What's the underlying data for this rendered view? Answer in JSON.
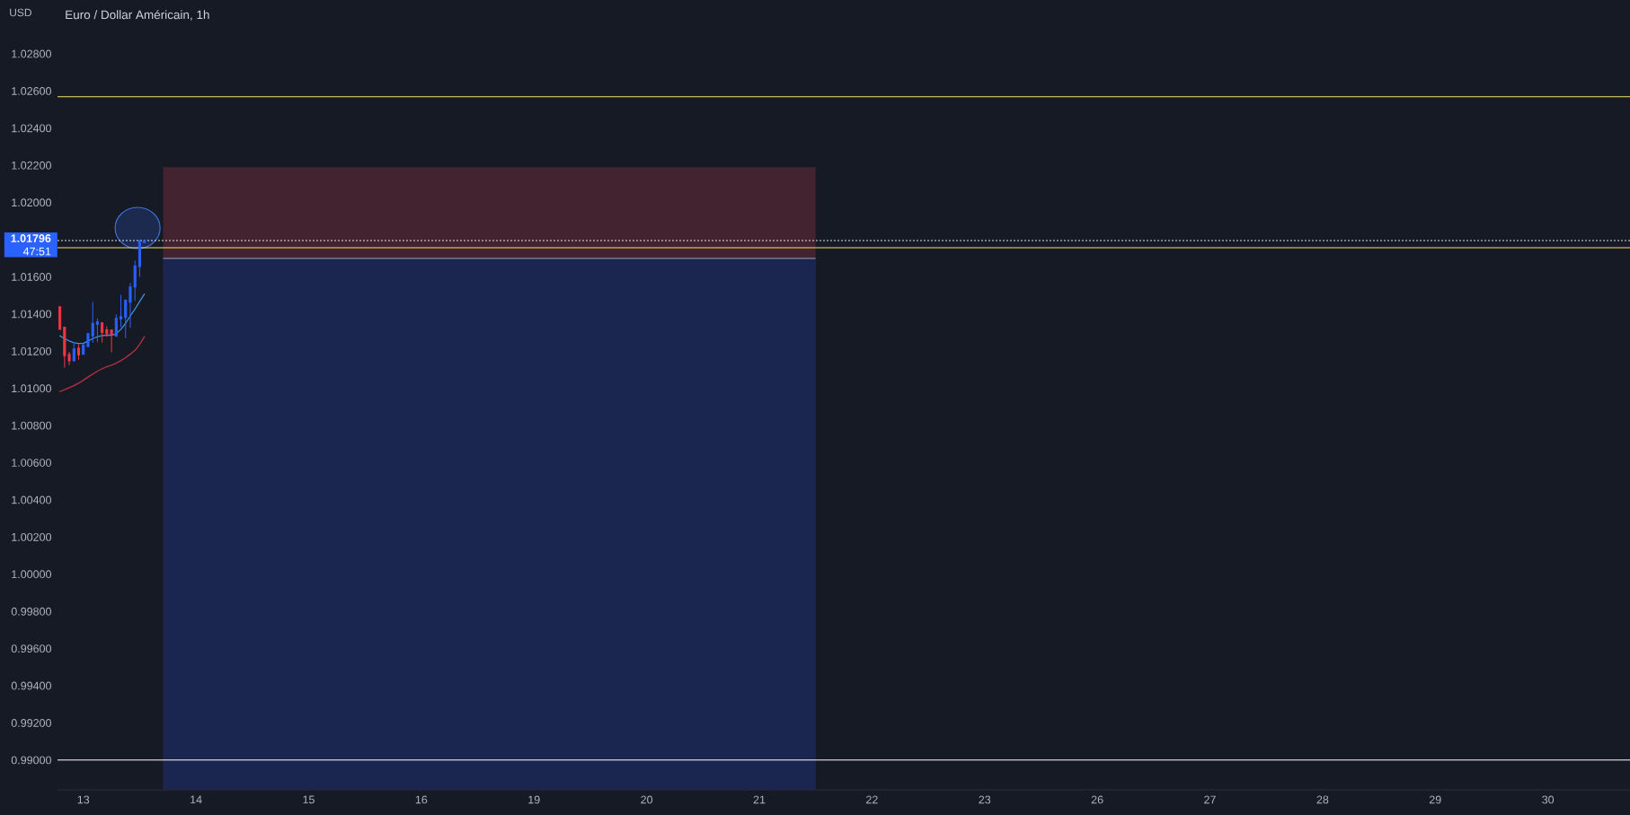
{
  "chart_data": {
    "type": "candlestick",
    "title": "Euro / Dollar Américain, 1h",
    "ylabel": "USD",
    "categories": [
      null,
      null,
      null,
      null,
      null,
      "13",
      null,
      null,
      null,
      null,
      null,
      null,
      null,
      null,
      null,
      null,
      null,
      null,
      null,
      null,
      null,
      null,
      null,
      null,
      null,
      null,
      null,
      null,
      null,
      "14",
      null,
      null,
      null,
      null,
      null,
      null,
      null,
      null,
      null,
      null,
      null,
      null,
      null,
      null,
      null,
      null,
      null,
      null,
      null,
      null,
      null,
      null,
      null,
      "15",
      null,
      null,
      null,
      null,
      null,
      null,
      null,
      null,
      null,
      null,
      null,
      null,
      null,
      null,
      null,
      null,
      null,
      null,
      null,
      null,
      null,
      null,
      null,
      "16",
      null,
      null,
      null,
      null,
      null,
      null,
      null,
      null,
      null,
      null,
      null,
      null,
      null,
      null,
      null,
      null,
      null,
      null,
      null,
      null,
      null,
      null,
      null,
      "19",
      null,
      null,
      null,
      null,
      null,
      null,
      null,
      null,
      null,
      null,
      null,
      null,
      null,
      null,
      null,
      null,
      null,
      null,
      null,
      null,
      null,
      null,
      null,
      "20",
      null,
      null,
      null,
      null,
      null,
      null,
      null,
      null,
      null,
      null,
      null,
      null,
      null,
      null,
      null,
      null,
      null,
      null,
      null,
      null,
      null,
      null,
      null,
      "21",
      null,
      null,
      null,
      null,
      null,
      null,
      null,
      null,
      null,
      null,
      null,
      null,
      null,
      null,
      null,
      null,
      null,
      null,
      null,
      null,
      null,
      null,
      null,
      "22",
      null,
      null,
      null,
      null,
      null,
      null,
      null,
      null,
      null,
      null,
      null,
      null,
      null,
      null,
      null,
      null,
      null,
      null,
      null,
      null,
      null,
      null,
      null,
      "23",
      null,
      null,
      null,
      null,
      null,
      null,
      null,
      null,
      null,
      null,
      null,
      null,
      null,
      null,
      null,
      null,
      null,
      null,
      null,
      null,
      null,
      null,
      null,
      "26",
      null,
      null,
      null,
      null,
      null,
      null,
      null,
      null,
      null,
      null,
      null,
      null,
      null,
      null,
      null,
      null,
      null,
      null,
      null,
      null,
      null,
      null,
      null,
      "27",
      null,
      null,
      null,
      null,
      null,
      null,
      null,
      null,
      null,
      null,
      null,
      null,
      null,
      null,
      null,
      null,
      null,
      null,
      null,
      null,
      null,
      null,
      null,
      "28",
      null,
      null,
      null,
      null,
      null,
      null,
      null,
      null,
      null,
      null,
      null,
      null,
      null,
      null,
      null,
      null,
      null,
      null,
      null,
      null,
      null,
      null,
      null,
      "29",
      null,
      null,
      null,
      null,
      null,
      null,
      null,
      null,
      null,
      null,
      null,
      null,
      null,
      null,
      null,
      null,
      null,
      null,
      null,
      null,
      null,
      null,
      null,
      "30",
      null,
      null,
      null,
      null,
      null,
      null,
      null,
      null,
      null,
      null,
      null,
      null,
      null,
      null,
      null,
      null,
      null
    ],
    "ohlc": [
      [
        1.01439,
        1.01442,
        1.01315,
        1.01318
      ],
      [
        1.01329,
        1.01331,
        1.01112,
        1.01176
      ],
      [
        1.01183,
        1.01197,
        1.01125,
        1.01149
      ],
      [
        1.01149,
        1.01241,
        1.01144,
        1.01213
      ],
      [
        1.01217,
        1.01238,
        1.01154,
        1.01181
      ],
      [
        1.01184,
        1.01238,
        1.01181,
        1.01234
      ],
      [
        1.01226,
        1.01299,
        1.01221,
        1.01294
      ],
      [
        1.01283,
        1.01466,
        1.01246,
        1.0135
      ],
      [
        1.01345,
        1.01377,
        1.01249,
        1.01358
      ],
      [
        1.01353,
        1.01357,
        1.01246,
        1.01302
      ],
      [
        1.01315,
        1.01334,
        1.01278,
        1.01294
      ],
      [
        1.01315,
        1.01318,
        1.01194,
        1.01289
      ],
      [
        1.01283,
        1.01398,
        1.01278,
        1.01377
      ],
      [
        1.01374,
        1.01503,
        1.01331,
        1.01386
      ],
      [
        1.01382,
        1.01479,
        1.0127,
        1.01474
      ],
      [
        1.01463,
        1.01567,
        1.01326,
        1.01546
      ],
      [
        1.01546,
        1.01688,
        1.01471,
        1.01659
      ],
      [
        1.01656,
        1.01801,
        1.016,
        1.01793
      ],
      [
        1.01785,
        1.01798,
        1.01785,
        1.01796
      ],
      null,
      null,
      null,
      null,
      null,
      null,
      null,
      null,
      null,
      null,
      null,
      null,
      null,
      null,
      null,
      null,
      null,
      null,
      null,
      null,
      null,
      null,
      null,
      null,
      null,
      null,
      null,
      null,
      null,
      null,
      null,
      null,
      null,
      null,
      null,
      null,
      null,
      null,
      null,
      null,
      null,
      null,
      null,
      null,
      null,
      null,
      null,
      null,
      null,
      null,
      null,
      null,
      null,
      null,
      null,
      null,
      null,
      null,
      null,
      null,
      null,
      null,
      null,
      null,
      null,
      null,
      null,
      null,
      null,
      null,
      null,
      null,
      null,
      null,
      null,
      null,
      null,
      null,
      null,
      null,
      null,
      null,
      null,
      null,
      null,
      null,
      null,
      null,
      null,
      null,
      null,
      null,
      null,
      null,
      null,
      null,
      null,
      null,
      null,
      null,
      null,
      null,
      null,
      null,
      null,
      null,
      null,
      null,
      null,
      null,
      null,
      null,
      null,
      null,
      null,
      null,
      null,
      null,
      null,
      null,
      null,
      null,
      null,
      null,
      null,
      null,
      null,
      null,
      null,
      null,
      null,
      null,
      null,
      null,
      null,
      null,
      null,
      null,
      null,
      null,
      null,
      null,
      null,
      null,
      null,
      null,
      null,
      null,
      null,
      null,
      null,
      null,
      null,
      null,
      null,
      null,
      null,
      null,
      null,
      null,
      null,
      null,
      null,
      null,
      null,
      null,
      null,
      null,
      null,
      null,
      null,
      null,
      null,
      null,
      null,
      null,
      null,
      null,
      null,
      null,
      null,
      null,
      null,
      null,
      null,
      null,
      null,
      null,
      null,
      null,
      null,
      null,
      null,
      null,
      null,
      null,
      null,
      null,
      null,
      null,
      null,
      null,
      null,
      null,
      null,
      null,
      null,
      null,
      null,
      null,
      null,
      null,
      null,
      null,
      null,
      null,
      null,
      null,
      null,
      null,
      null,
      null,
      null,
      null,
      null,
      null,
      null,
      null,
      null,
      null,
      null,
      null,
      null,
      null,
      null,
      null,
      null,
      null,
      null,
      null,
      null,
      null,
      null,
      null,
      null,
      null,
      null,
      null,
      null,
      null,
      null,
      null,
      null,
      null,
      null,
      null,
      null,
      null,
      null,
      null,
      null,
      null,
      null,
      null,
      null,
      null,
      null,
      null,
      null,
      null,
      null,
      null,
      null,
      null,
      null,
      null,
      null,
      null,
      null,
      null,
      null,
      null,
      null,
      null,
      null,
      null,
      null,
      null,
      null,
      null,
      null,
      null,
      null,
      null,
      null,
      null,
      null,
      null,
      null,
      null,
      null,
      null,
      null,
      null,
      null,
      null,
      null,
      null,
      null,
      null,
      null,
      null,
      null,
      null,
      null,
      null
    ],
    "colors": [
      "#f23645",
      "#f23645",
      "#f23645",
      "#2962ff",
      "#f23645",
      "#2962ff",
      "#2962ff",
      "#2962ff",
      "#2962ff",
      "#f23645",
      "#f23645",
      "#f23645",
      "#2962ff",
      "#2962ff",
      "#2962ff",
      "#2962ff",
      "#2962ff",
      "#2962ff",
      "#2962ff",
      null,
      null,
      null,
      null,
      null,
      null,
      null,
      null,
      null,
      null,
      null,
      null,
      null,
      null,
      null,
      null,
      null,
      null,
      null,
      null,
      null,
      null,
      null,
      null,
      null,
      null,
      null,
      null,
      null,
      null,
      null,
      null,
      null,
      null,
      null,
      null,
      null,
      null,
      null,
      null,
      null,
      null,
      null,
      null,
      null,
      null,
      null,
      null,
      null,
      null,
      null,
      null,
      null,
      null,
      null,
      null,
      null,
      null,
      null,
      null,
      null,
      null,
      null,
      null,
      null,
      null,
      null,
      null,
      null,
      null,
      null,
      null,
      null,
      null,
      null,
      null,
      null,
      null,
      null,
      null,
      null,
      null,
      null,
      null,
      null,
      null,
      null,
      null,
      null,
      null,
      null,
      null,
      null,
      null,
      null,
      null,
      null,
      null,
      null,
      null,
      null,
      null,
      null,
      null,
      null,
      null,
      null,
      null,
      null,
      null,
      null,
      null,
      null,
      null,
      null,
      null,
      null,
      null,
      null,
      null,
      null,
      null,
      null,
      null,
      null,
      null,
      null,
      null,
      null,
      null,
      null,
      null,
      null,
      null,
      null,
      null,
      null,
      null,
      null,
      null,
      null,
      null,
      null,
      null,
      null,
      null,
      null,
      null,
      null,
      null,
      null,
      null,
      null,
      null,
      null,
      null,
      null,
      null,
      null,
      null,
      null,
      null,
      null,
      null,
      null,
      null,
      null,
      null,
      null,
      null,
      null,
      null,
      null,
      null,
      null,
      null,
      null,
      null,
      null,
      null,
      null,
      null,
      null,
      null,
      null,
      null,
      null,
      null,
      null,
      null,
      null,
      null,
      null,
      null,
      null,
      null,
      null,
      null,
      null,
      null,
      null,
      null,
      null,
      null,
      null,
      null,
      null,
      null,
      null,
      null,
      null,
      null,
      null,
      null,
      null,
      null,
      null,
      null,
      null,
      null,
      null,
      null,
      null,
      null,
      null,
      null,
      null,
      null,
      null,
      null,
      null,
      null,
      null,
      null,
      null,
      null,
      null,
      null,
      null,
      null,
      null,
      null,
      null,
      null,
      null,
      null,
      null,
      null,
      null,
      null,
      null,
      null,
      null,
      null,
      null,
      null,
      null,
      null,
      null,
      null,
      null,
      null,
      null,
      null,
      null,
      null,
      null,
      null,
      null,
      null,
      null,
      null,
      null,
      null,
      null,
      null,
      null,
      null,
      null,
      null,
      null,
      null,
      null,
      null,
      null,
      null,
      null,
      null,
      null,
      null,
      null,
      null,
      null,
      null,
      null,
      null,
      null,
      null,
      null,
      null,
      null,
      null,
      null,
      null,
      null,
      null,
      null,
      null,
      null,
      null,
      null,
      null,
      null,
      null,
      null,
      null
    ],
    "series": [
      {
        "type": "area",
        "color": "#442330",
        "values": [
          null,
          null,
          null,
          null,
          null,
          null,
          null,
          null,
          null,
          null,
          null,
          null,
          null,
          null,
          null,
          null,
          null,
          null,
          null,
          null,
          null,
          null,
          1.0219,
          1.0219,
          1.0219,
          1.0219,
          1.0219,
          1.0219,
          1.0219,
          1.0219,
          1.0219,
          1.0219,
          1.0219,
          1.0219,
          1.0219,
          1.0219,
          1.0219,
          1.0219,
          1.0219,
          1.0219,
          1.0219,
          1.0219,
          1.0219,
          1.0219,
          1.0219,
          1.0219,
          1.0219,
          1.0219,
          1.0219,
          1.0219,
          1.0219,
          1.0219,
          1.0219,
          1.0219,
          1.0219,
          1.0219,
          1.0219,
          1.0219,
          1.0219,
          1.0219,
          1.0219,
          1.0219,
          1.0219,
          1.0219,
          1.0219,
          1.0219,
          1.0219,
          1.0219,
          1.0219,
          1.0219,
          1.0219,
          1.0219,
          1.0219,
          1.0219,
          1.0219,
          1.0219,
          1.0219,
          1.0219,
          1.0219,
          1.0219,
          1.0219,
          1.0219,
          1.0219,
          1.0219,
          1.0219,
          1.0219,
          1.0219,
          1.0219,
          1.0219,
          1.0219,
          1.0219,
          1.0219,
          1.0219,
          1.0219,
          1.0219,
          1.0219,
          1.0219,
          1.0219,
          1.0219,
          1.0219,
          1.0219,
          1.0219,
          1.0219,
          1.0219,
          1.0219,
          1.0219,
          1.0219,
          1.0219,
          1.0219,
          1.0219,
          1.0219,
          1.0219,
          1.0219,
          1.0219,
          1.0219,
          1.0219,
          1.0219,
          1.0219,
          1.0219,
          1.0219,
          1.0219,
          1.0219,
          1.0219,
          1.0219,
          1.0219,
          1.0219,
          1.0219,
          1.0219,
          1.0219,
          1.0219,
          1.0219,
          1.0219,
          1.0219,
          1.0219,
          1.0219,
          1.0219,
          1.0219,
          1.0219,
          1.0219,
          1.0219,
          1.0219,
          1.0219,
          1.0219,
          1.0219,
          1.0219,
          1.0219,
          1.0219,
          1.0219,
          1.0219,
          1.0219,
          1.0219,
          1.0219,
          1.0219,
          1.0219,
          1.0219,
          1.0219,
          1.0219,
          1.0219,
          1.0219,
          1.0219,
          1.0219,
          1.0219,
          null,
          null,
          null,
          null,
          null,
          null,
          null,
          null,
          null,
          null,
          null,
          null,
          null,
          null,
          null,
          null,
          null,
          null,
          null,
          null,
          null,
          null,
          null,
          null,
          null,
          null,
          null,
          null,
          null,
          null,
          null,
          null,
          null,
          null,
          null,
          null,
          null,
          null,
          null,
          null,
          null,
          null,
          null,
          null,
          null,
          null,
          null,
          null,
          null,
          null,
          null,
          null,
          null,
          null,
          null,
          null,
          null,
          null,
          null,
          null,
          null,
          null,
          null,
          null,
          null,
          null,
          null,
          null,
          null,
          null,
          null,
          null,
          null,
          null,
          null,
          null,
          null,
          null,
          null,
          null,
          null,
          null,
          null,
          null,
          null,
          null,
          null,
          null,
          null,
          null,
          null,
          null,
          null,
          null,
          null,
          null,
          null,
          null,
          null,
          null,
          null,
          null,
          null,
          null,
          null,
          null,
          null,
          null,
          null,
          null,
          null,
          null,
          null,
          null,
          null,
          null,
          null,
          null,
          null,
          null,
          null,
          null,
          null,
          null,
          null,
          null,
          null,
          null,
          null,
          null,
          null,
          null,
          null,
          null,
          null,
          null,
          null,
          null,
          null,
          null,
          null,
          null,
          null,
          null,
          null,
          null,
          null,
          null,
          null,
          null,
          null,
          null,
          null,
          null,
          null,
          null,
          null,
          null,
          null,
          null,
          null,
          null,
          null,
          null,
          null,
          null,
          null,
          null,
          null,
          null,
          null,
          null,
          null
        ]
      },
      {
        "type": "area",
        "color": "#1b2650",
        "line_style": "solid",
        "values": [
          null,
          null,
          null,
          null,
          null,
          null,
          null,
          null,
          null,
          null,
          null,
          null,
          null,
          null,
          null,
          null,
          null,
          null,
          null,
          null,
          null,
          null,
          1.017,
          1.017,
          1.017,
          1.017,
          1.017,
          1.017,
          1.017,
          1.017,
          1.017,
          1.017,
          1.017,
          1.017,
          1.017,
          1.017,
          1.017,
          1.017,
          1.017,
          1.017,
          1.017,
          1.017,
          1.017,
          1.017,
          1.017,
          1.017,
          1.017,
          1.017,
          1.017,
          1.017,
          1.017,
          1.017,
          1.017,
          1.017,
          1.017,
          1.017,
          1.017,
          1.017,
          1.017,
          1.017,
          1.017,
          1.017,
          1.017,
          1.017,
          1.017,
          1.017,
          1.017,
          1.017,
          1.017,
          1.017,
          1.017,
          1.017,
          1.017,
          1.017,
          1.017,
          1.017,
          1.017,
          1.017,
          1.017,
          1.017,
          1.017,
          1.017,
          1.017,
          1.017,
          1.017,
          1.017,
          1.017,
          1.017,
          1.017,
          1.017,
          1.017,
          1.017,
          1.017,
          1.017,
          1.017,
          1.017,
          1.017,
          1.017,
          1.017,
          1.017,
          1.017,
          1.017,
          1.017,
          1.017,
          1.017,
          1.017,
          1.017,
          1.017,
          1.017,
          1.017,
          1.017,
          1.017,
          1.017,
          1.017,
          1.017,
          1.017,
          1.017,
          1.017,
          1.017,
          1.017,
          1.017,
          1.017,
          1.017,
          1.017,
          1.017,
          1.017,
          1.017,
          1.017,
          1.017,
          1.017,
          1.017,
          1.017,
          1.017,
          1.017,
          1.017,
          1.017,
          1.017,
          1.017,
          1.017,
          1.017,
          1.017,
          1.017,
          1.017,
          1.017,
          1.017,
          1.017,
          1.017,
          1.017,
          1.017,
          1.017,
          1.017,
          1.017,
          1.017,
          1.017,
          1.017,
          1.017,
          1.017,
          1.017,
          1.017,
          1.017,
          1.017,
          1.017,
          null,
          null,
          null,
          null,
          null,
          null,
          null,
          null,
          null,
          null,
          null,
          null,
          null,
          null,
          null,
          null,
          null,
          null,
          null,
          null,
          null,
          null,
          null,
          null,
          null,
          null,
          null,
          null,
          null,
          null,
          null,
          null,
          null,
          null,
          null,
          null,
          null,
          null,
          null,
          null,
          null,
          null,
          null,
          null,
          null,
          null,
          null,
          null,
          null,
          null,
          null,
          null,
          null,
          null,
          null,
          null,
          null,
          null,
          null,
          null,
          null,
          null,
          null,
          null,
          null,
          null,
          null,
          null,
          null,
          null,
          null,
          null,
          null,
          null,
          null,
          null,
          null,
          null,
          null,
          null,
          null,
          null,
          null,
          null,
          null,
          null,
          null,
          null,
          null,
          null,
          null,
          null,
          null,
          null,
          null,
          null,
          null,
          null,
          null,
          null,
          null,
          null,
          null,
          null,
          null,
          null,
          null,
          null,
          null,
          null,
          null,
          null,
          null,
          null,
          null,
          null,
          null,
          null,
          null,
          null,
          null,
          null,
          null,
          null,
          null,
          null,
          null,
          null,
          null,
          null,
          null,
          null,
          null,
          null,
          null,
          null,
          null,
          null,
          null,
          null,
          null,
          null,
          null,
          null,
          null,
          null,
          null,
          null,
          null,
          null,
          null,
          null,
          null,
          null,
          null,
          null,
          null,
          null,
          null,
          null,
          null,
          null,
          null,
          null,
          null,
          null,
          null,
          null,
          null,
          null,
          null,
          null,
          null
        ]
      },
      {
        "type": "line",
        "color": "#3b8fd8",
        "values": [
          1.01283,
          1.01268,
          1.01255,
          1.01246,
          1.01242,
          1.01242,
          1.01255,
          1.01268,
          1.01278,
          1.01284,
          1.01286,
          1.01286,
          1.01294,
          1.01318,
          1.0135,
          1.0139,
          1.01427,
          1.01468,
          1.01508,
          null,
          null,
          null,
          null,
          null,
          null,
          null,
          null,
          null,
          null,
          null,
          null,
          null,
          null,
          null,
          null,
          null,
          null,
          null,
          null,
          null,
          null,
          null,
          null,
          null,
          null,
          null,
          null,
          null,
          null,
          null,
          null,
          null,
          null,
          null,
          null,
          null,
          null,
          null,
          null,
          null,
          null,
          null,
          null,
          null,
          null,
          null,
          null,
          null,
          null,
          null,
          null,
          null,
          null,
          null,
          null,
          null,
          null,
          null,
          null,
          null,
          null,
          null,
          null,
          null,
          null,
          null,
          null,
          null,
          null,
          null,
          null,
          null,
          null,
          null,
          null,
          null,
          null,
          null,
          null,
          null,
          null,
          null,
          null,
          null,
          null,
          null,
          null,
          null,
          null,
          null,
          null,
          null,
          null,
          null,
          null,
          null,
          null,
          null,
          null,
          null,
          null,
          null,
          null,
          null,
          null,
          null,
          null,
          null,
          null,
          null,
          null,
          null,
          null,
          null,
          null,
          null,
          null,
          null,
          null,
          null,
          null,
          null,
          null,
          null,
          null,
          null,
          null,
          null,
          null,
          null,
          null,
          null,
          null,
          null,
          null,
          null,
          null,
          null,
          null,
          null,
          null,
          null,
          null,
          null,
          null,
          null,
          null,
          null,
          null,
          null,
          null,
          null,
          null,
          null,
          null,
          null,
          null,
          null,
          null,
          null,
          null,
          null,
          null,
          null,
          null,
          null,
          null,
          null,
          null,
          null,
          null,
          null,
          null,
          null,
          null,
          null,
          null,
          null,
          null,
          null,
          null,
          null,
          null,
          null,
          null,
          null,
          null,
          null,
          null,
          null,
          null,
          null,
          null,
          null,
          null,
          null,
          null,
          null,
          null,
          null,
          null,
          null,
          null,
          null,
          null,
          null,
          null,
          null,
          null,
          null,
          null,
          null,
          null,
          null,
          null,
          null,
          null,
          null,
          null,
          null,
          null,
          null,
          null,
          null,
          null,
          null,
          null,
          null,
          null,
          null,
          null,
          null,
          null,
          null,
          null,
          null,
          null,
          null,
          null,
          null,
          null,
          null,
          null,
          null,
          null,
          null,
          null,
          null,
          null,
          null,
          null,
          null,
          null,
          null,
          null,
          null,
          null,
          null,
          null,
          null,
          null,
          null,
          null,
          null,
          null,
          null,
          null,
          null,
          null,
          null,
          null,
          null,
          null,
          null,
          null,
          null,
          null,
          null,
          null,
          null,
          null,
          null,
          null,
          null,
          null,
          null,
          null,
          null,
          null,
          null,
          null,
          null,
          null,
          null,
          null,
          null,
          null,
          null,
          null,
          null,
          null,
          null,
          null,
          null,
          null,
          null,
          null,
          null,
          null,
          null,
          null,
          null,
          null,
          null,
          null
        ]
      },
      {
        "type": "line",
        "color": "#b8313f",
        "values": [
          1.00983,
          1.00993,
          1.01004,
          1.01015,
          1.01028,
          1.01044,
          1.01061,
          1.01077,
          1.01093,
          1.01106,
          1.01117,
          1.01125,
          1.01136,
          1.01149,
          1.01165,
          1.01184,
          1.01205,
          1.01237,
          1.01278,
          null,
          null,
          null,
          null,
          null,
          null,
          null,
          null,
          null,
          null,
          null,
          null,
          null,
          null,
          null,
          null,
          null,
          null,
          null,
          null,
          null,
          null,
          null,
          null,
          null,
          null,
          null,
          null,
          null,
          null,
          null,
          null,
          null,
          null,
          null,
          null,
          null,
          null,
          null,
          null,
          null,
          null,
          null,
          null,
          null,
          null,
          null,
          null,
          null,
          null,
          null,
          null,
          null,
          null,
          null,
          null,
          null,
          null,
          null,
          null,
          null,
          null,
          null,
          null,
          null,
          null,
          null,
          null,
          null,
          null,
          null,
          null,
          null,
          null,
          null,
          null,
          null,
          null,
          null,
          null,
          null,
          null,
          null,
          null,
          null,
          null,
          null,
          null,
          null,
          null,
          null,
          null,
          null,
          null,
          null,
          null,
          null,
          null,
          null,
          null,
          null,
          null,
          null,
          null,
          null,
          null,
          null,
          null,
          null,
          null,
          null,
          null,
          null,
          null,
          null,
          null,
          null,
          null,
          null,
          null,
          null,
          null,
          null,
          null,
          null,
          null,
          null,
          null,
          null,
          null,
          null,
          null,
          null,
          null,
          null,
          null,
          null,
          null,
          null,
          null,
          null,
          null,
          null,
          null,
          null,
          null,
          null,
          null,
          null,
          null,
          null,
          null,
          null,
          null,
          null,
          null,
          null,
          null,
          null,
          null,
          null,
          null,
          null,
          null,
          null,
          null,
          null,
          null,
          null,
          null,
          null,
          null,
          null,
          null,
          null,
          null,
          null,
          null,
          null,
          null,
          null,
          null,
          null,
          null,
          null,
          null,
          null,
          null,
          null,
          null,
          null,
          null,
          null,
          null,
          null,
          null,
          null,
          null,
          null,
          null,
          null,
          null,
          null,
          null,
          null,
          null,
          null,
          null,
          null,
          null,
          null,
          null,
          null,
          null,
          null,
          null,
          null,
          null,
          null,
          null,
          null,
          null,
          null,
          null,
          null,
          null,
          null,
          null,
          null,
          null,
          null,
          null,
          null,
          null,
          null,
          null,
          null,
          null,
          null,
          null,
          null,
          null,
          null,
          null,
          null,
          null,
          null,
          null,
          null,
          null,
          null,
          null,
          null,
          null,
          null,
          null,
          null,
          null,
          null,
          null,
          null,
          null,
          null,
          null,
          null,
          null,
          null,
          null,
          null,
          null,
          null,
          null,
          null,
          null,
          null,
          null,
          null,
          null,
          null,
          null,
          null,
          null,
          null,
          null,
          null,
          null,
          null,
          null,
          null,
          null,
          null,
          null,
          null,
          null,
          null,
          null,
          null,
          null,
          null,
          null,
          null,
          null,
          null,
          null,
          null,
          null,
          null,
          null,
          null,
          null,
          null,
          null,
          null,
          null,
          null,
          null
        ]
      }
    ],
    "ref_lines": [
      {
        "axis": "y",
        "value": 1.0257,
        "color": "#f5e16d"
      },
      {
        "axis": "y",
        "value": 1.01757,
        "color": "#f5e16d"
      },
      {
        "axis": "y",
        "value": 0.99,
        "color": "#ffffff"
      },
      {
        "axis": "y",
        "value": 1.01796,
        "label": "1.01796",
        "color": "#e0e3eb",
        "line_style": "dashed"
      }
    ],
    "annotations": [
      "47:51"
    ],
    "ylim": [
      0.9884,
      1.0309
    ],
    "yticks": [
      {
        "value": 0.99,
        "label": "0.99000"
      },
      {
        "value": 0.992,
        "label": "0.99200"
      },
      {
        "value": 0.994,
        "label": "0.99400"
      },
      {
        "value": 0.996,
        "label": "0.99600"
      },
      {
        "value": 0.998,
        "label": "0.99800"
      },
      {
        "value": 1.0,
        "label": "1.00000"
      },
      {
        "value": 1.002,
        "label": "1.00200"
      },
      {
        "value": 1.004,
        "label": "1.00400"
      },
      {
        "value": 1.006,
        "label": "1.00600"
      },
      {
        "value": 1.008,
        "label": "1.00800"
      },
      {
        "value": 1.01,
        "label": "1.01000"
      },
      {
        "value": 1.012,
        "label": "1.01200"
      },
      {
        "value": 1.014,
        "label": "1.01400"
      },
      {
        "value": 1.016,
        "label": "1.01600"
      },
      {
        "value": 1.02,
        "label": "1.02000"
      },
      {
        "value": 1.022,
        "label": "1.02200"
      },
      {
        "value": 1.024,
        "label": "1.02400"
      },
      {
        "value": 1.026,
        "label": "1.02600"
      },
      {
        "value": 1.028,
        "label": "1.02800"
      }
    ]
  }
}
